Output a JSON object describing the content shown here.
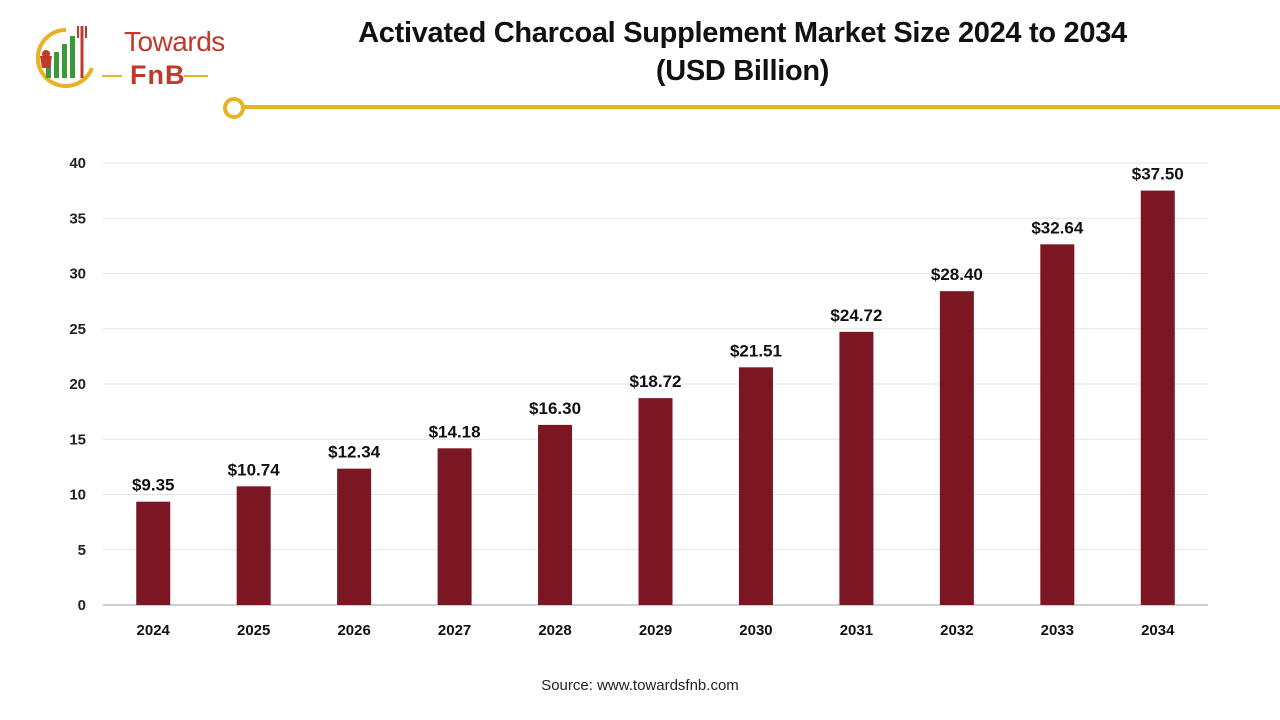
{
  "brand": {
    "name_top": "Towards",
    "name_bottom": "FnB",
    "colors": {
      "primary": "#c0392b",
      "accent": "#e6b422",
      "green": "#3a9a3a"
    }
  },
  "source": "Source: www.towardsfnb.com",
  "chart_data": {
    "type": "bar",
    "title": "Activated Charcoal Supplement Market Size 2024 to 2034",
    "subtitle": "(USD Billion)",
    "categories": [
      "2024",
      "2025",
      "2026",
      "2027",
      "2028",
      "2029",
      "2030",
      "2031",
      "2032",
      "2033",
      "2034"
    ],
    "values": [
      9.35,
      10.74,
      12.34,
      14.18,
      16.3,
      18.72,
      21.51,
      24.72,
      28.4,
      32.64,
      37.5
    ],
    "data_labels": [
      "$9.35",
      "$10.74",
      "$12.34",
      "$14.18",
      "$16.30",
      "$18.72",
      "$21.51",
      "$24.72",
      "$28.40",
      "$32.64",
      "$37.50"
    ],
    "y_ticks": [
      "0",
      "5",
      "10",
      "15",
      "20",
      "25",
      "30",
      "35",
      "40"
    ],
    "ylim": [
      0,
      40
    ],
    "xlabel": "",
    "ylabel": "",
    "grid": true,
    "legend": "none",
    "bar_color": "#7a1722"
  }
}
